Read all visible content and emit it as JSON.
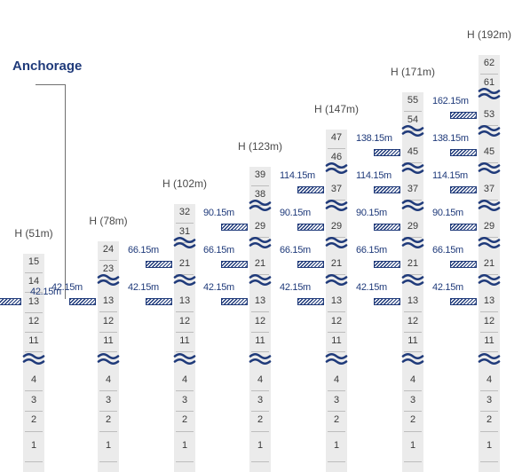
{
  "diagram": {
    "title": "Anchorage",
    "accent_color": "#1f3a7a",
    "column_fill": "#ebebeb",
    "break_symbol": "wave-break-icon",
    "anchor_symbol": "anchor-hatch-icon",
    "columns": [
      {
        "height_label": "H (51m)",
        "top_floors": [
          "15",
          "14",
          "13",
          "12",
          "11"
        ],
        "mid_floors": [],
        "anchors": [
          "42.15m"
        ]
      },
      {
        "height_label": "H (78m)",
        "top_floors": [
          "24",
          "23"
        ],
        "mid_floors": [
          "13",
          "12",
          "11"
        ],
        "anchors": [
          "42.15m"
        ]
      },
      {
        "height_label": "H (102m)",
        "top_floors": [
          "32",
          "31"
        ],
        "mid_floors": [
          "21",
          "13",
          "12",
          "11"
        ],
        "anchors": [
          "66.15m",
          "42.15m"
        ]
      },
      {
        "height_label": "H (123m)",
        "top_floors": [
          "39",
          "38"
        ],
        "mid_floors": [
          "29",
          "21",
          "13",
          "12",
          "11"
        ],
        "anchors": [
          "90.15m",
          "66.15m",
          "42.15m"
        ]
      },
      {
        "height_label": "H (147m)",
        "top_floors": [
          "47",
          "46"
        ],
        "mid_floors": [
          "37",
          "29",
          "21",
          "13",
          "12",
          "11"
        ],
        "anchors": [
          "114.15m",
          "90.15m",
          "66.15m",
          "42.15m"
        ]
      },
      {
        "height_label": "H (171m)",
        "top_floors": [
          "55",
          "54"
        ],
        "mid_floors": [
          "45",
          "37",
          "29",
          "21",
          "13",
          "12",
          "11"
        ],
        "anchors": [
          "138.15m",
          "114.15m",
          "90.15m",
          "66.15m",
          "42.15m"
        ]
      },
      {
        "height_label": "H (192m)",
        "top_floors": [
          "62",
          "61"
        ],
        "mid_floors": [
          "53",
          "45",
          "37",
          "29",
          "21",
          "13",
          "12",
          "11"
        ],
        "anchors": [
          "162.15m",
          "138.15m",
          "114.15m",
          "90.15m",
          "66.15m",
          "42.15m"
        ]
      }
    ],
    "base_floors": [
      "4",
      "3",
      "2",
      "1"
    ]
  }
}
